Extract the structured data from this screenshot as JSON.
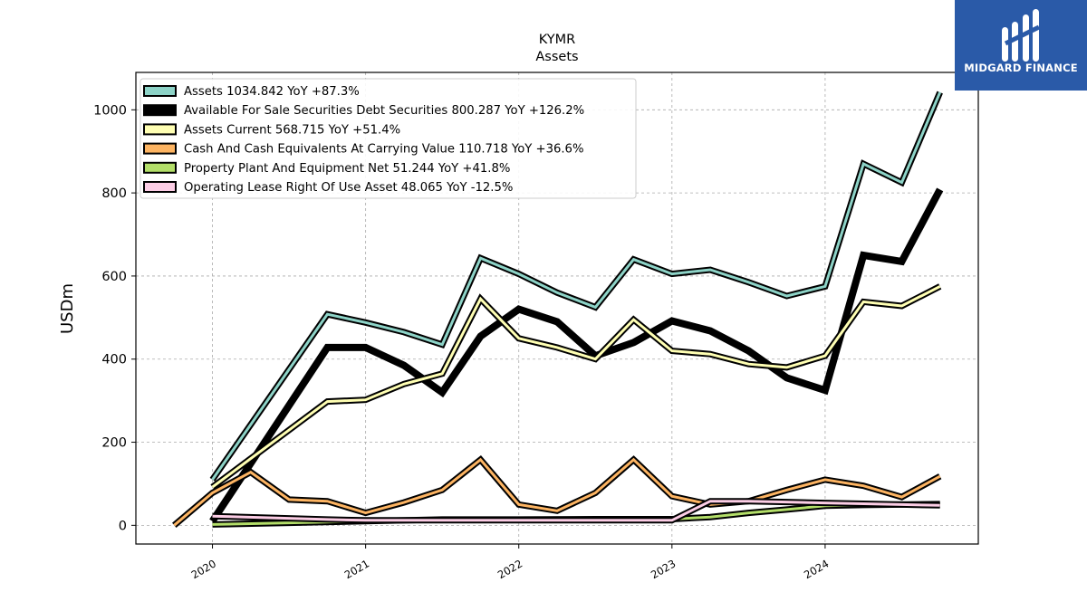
{
  "chart_data": {
    "type": "line",
    "title": "KYMR",
    "subtitle": "Assets",
    "ylabel": "USDm",
    "xlabel": "",
    "ylim": [
      -45,
      1090
    ],
    "xlim": [
      2019.5,
      2025.0
    ],
    "yticks": [
      0,
      200,
      400,
      600,
      800,
      1000
    ],
    "xticks": [
      {
        "value": 2020,
        "label": "2020"
      },
      {
        "value": 2021,
        "label": "2021"
      },
      {
        "value": 2022,
        "label": "2022"
      },
      {
        "value": 2023,
        "label": "2023"
      },
      {
        "value": 2024,
        "label": "2024"
      }
    ],
    "grid": true,
    "legend_position": "top-left",
    "series": [
      {
        "name": "Assets  1034.842 YoY +87.3%",
        "color": "#8dd3c7",
        "width": 3,
        "x": [
          2020.0,
          2020.75,
          2021.0,
          2021.25,
          2021.5,
          2021.75,
          2022.0,
          2022.25,
          2022.5,
          2022.75,
          2023.0,
          2023.25,
          2023.5,
          2023.75,
          2024.0,
          2024.25,
          2024.5,
          2024.75
        ],
        "y": [
          110,
          508,
          488,
          465,
          435,
          643,
          605,
          560,
          525,
          640,
          605,
          615,
          585,
          552,
          575,
          870,
          825,
          1042
        ]
      },
      {
        "name": "Available For Sale Securities Debt Securities  800.287 YoY +126.2%",
        "color": "#000000",
        "width": 6,
        "x": [
          2020.0,
          2020.75,
          2021.0,
          2021.25,
          2021.5,
          2021.75,
          2022.0,
          2022.25,
          2022.5,
          2022.75,
          2023.0,
          2023.25,
          2023.5,
          2023.75,
          2024.0,
          2024.25,
          2024.5,
          2024.75
        ],
        "y": [
          10,
          428,
          428,
          385,
          320,
          455,
          520,
          490,
          408,
          440,
          492,
          468,
          420,
          355,
          325,
          650,
          635,
          808
        ]
      },
      {
        "name": "Assets Current  568.715 YoY +51.4%",
        "color": "#ffffb3",
        "width": 3,
        "x": [
          2020.0,
          2020.75,
          2021.0,
          2021.25,
          2021.5,
          2021.75,
          2022.0,
          2022.25,
          2022.5,
          2022.75,
          2023.0,
          2023.25,
          2023.5,
          2023.75,
          2024.0,
          2024.25,
          2024.5,
          2024.75
        ],
        "y": [
          92,
          298,
          302,
          340,
          365,
          545,
          450,
          428,
          400,
          495,
          420,
          412,
          388,
          380,
          408,
          538,
          528,
          575
        ]
      },
      {
        "name": "Cash And Cash Equivalents At Carrying Value  110.718 YoY +36.6%",
        "color": "#fdb462",
        "width": 3,
        "x": [
          2019.75,
          2020.0,
          2020.25,
          2020.5,
          2020.75,
          2021.0,
          2021.25,
          2021.5,
          2021.75,
          2022.0,
          2022.25,
          2022.5,
          2022.75,
          2023.0,
          2023.25,
          2023.5,
          2023.75,
          2024.0,
          2024.25,
          2024.5,
          2024.75
        ],
        "y": [
          0,
          78,
          128,
          62,
          58,
          30,
          55,
          85,
          158,
          50,
          35,
          78,
          158,
          70,
          50,
          58,
          85,
          110,
          95,
          68,
          118
        ]
      },
      {
        "name": "Property Plant And Equipment Net  51.244 YoY +41.8%",
        "color": "#b3de69",
        "width": 3,
        "x": [
          2020.0,
          2020.5,
          2021.0,
          2021.5,
          2022.0,
          2022.5,
          2023.0,
          2023.25,
          2023.5,
          2023.75,
          2024.0,
          2024.25,
          2024.5,
          2024.75
        ],
        "y": [
          2,
          6,
          10,
          14,
          14,
          15,
          15,
          20,
          30,
          38,
          47,
          49,
          50,
          51
        ]
      },
      {
        "name": "Operating Lease Right Of Use Asset  48.065 YoY -12.5%",
        "color": "#fccde5",
        "width": 3,
        "x": [
          2020.0,
          2020.75,
          2021.0,
          2021.5,
          2022.0,
          2022.5,
          2023.0,
          2023.25,
          2023.5,
          2023.75,
          2024.0,
          2024.25,
          2024.5,
          2024.75
        ],
        "y": [
          22,
          14,
          12,
          12,
          12,
          12,
          12,
          58,
          58,
          56,
          54,
          52,
          50,
          48
        ]
      }
    ]
  },
  "logo": {
    "name": "MIDGARD FINANCE",
    "color": "#2a5aa8"
  }
}
